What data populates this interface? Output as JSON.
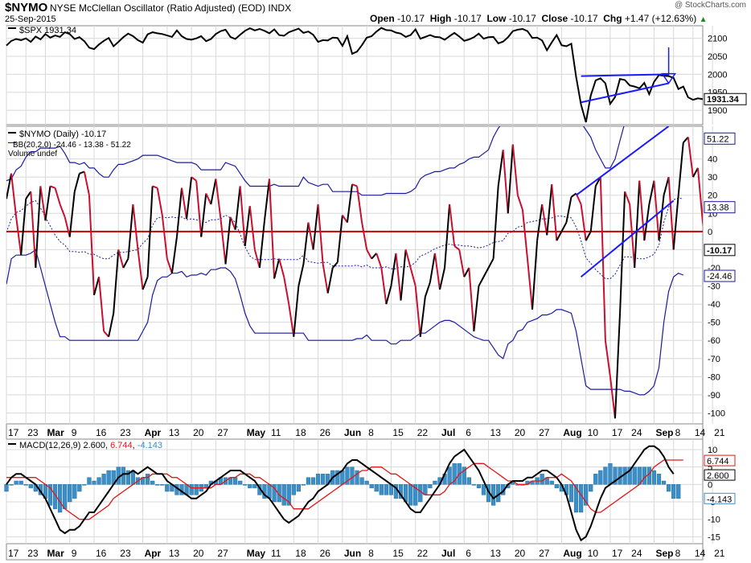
{
  "header": {
    "symbol": "$NYMO",
    "name": "NYSE McClellan Oscillator (Ratio Adjusted) (EOD)",
    "exchange": "INDX",
    "date": "25-Sep-2015",
    "brand": "@ StockCharts.com",
    "open_label": "Open",
    "open": "-10.17",
    "high_label": "High",
    "high": "-10.17",
    "low_label": "Low",
    "low": "-10.17",
    "close_label": "Close",
    "close": "-10.17",
    "chg_label": "Chg",
    "chg": "+1.47 (+12.63%)",
    "up_icon": "triangle-up-icon"
  },
  "colors": {
    "price_line": "#000000",
    "nymo_up": "#000000",
    "nymo_down": "#c8102e",
    "bands": "#1a1aa0",
    "zero_line": "#cc0000",
    "annotation": "#1a1aff",
    "macd_line": "#000000",
    "signal_line": "#e01818",
    "histogram": "#3a8fc8",
    "grid": "#d8d8d8",
    "label_box": "#000000"
  },
  "chart_data": [
    {
      "type": "line",
      "panel": "price",
      "legend": "$SPX 1931.34",
      "series_name": "$SPX",
      "last_label": "1931.34",
      "ylim": [
        1860,
        2135
      ],
      "yticks": [
        "1900",
        "1950",
        "2000",
        "2050",
        "2100"
      ],
      "values": [
        2080,
        2093,
        2098,
        2095,
        2100,
        2090,
        2105,
        2097,
        2112,
        2102,
        2108,
        2104,
        2117,
        2112,
        2098,
        2103,
        2092,
        2074,
        2070,
        2083,
        2093,
        2101,
        2078,
        2090,
        2103,
        2113,
        2106,
        2095,
        2088,
        2111,
        2117,
        2114,
        2112,
        2108,
        2104,
        2122,
        2106,
        2098,
        2096,
        2100,
        2106,
        2092,
        2098,
        2112,
        2120,
        2124,
        2104,
        2098,
        2110,
        2121,
        2128,
        2122,
        2126,
        2121,
        2114,
        2125,
        2109,
        2107,
        2117,
        2122,
        2127,
        2115,
        2119,
        2110,
        2090,
        2095,
        2094,
        2102,
        2101,
        2079,
        2106,
        2057,
        2063,
        2081,
        2102,
        2106,
        2119,
        2129,
        2123,
        2122,
        2116,
        2113,
        2104,
        2109,
        2125,
        2099,
        2104,
        2109,
        2104,
        2103,
        2096,
        2106,
        2115,
        2105,
        2093,
        2097,
        2103,
        2113,
        2099,
        2103,
        2104,
        2086,
        2091,
        2103,
        2120,
        2124,
        2126,
        2120,
        2101,
        2102,
        2094,
        2067,
        2089,
        2109,
        2081,
        2078,
        2085,
        1993,
        1916,
        1867,
        1941,
        1983,
        1989,
        1975,
        1918,
        1937,
        1987,
        1984,
        1969,
        1966,
        1961,
        1976,
        1945,
        1979,
        1998,
        1996,
        1995,
        1990,
        1959,
        1966,
        1936,
        1929,
        1933,
        1931
      ],
      "annotations": [
        {
          "type": "trendline",
          "from": {
            "x": 118,
            "y": 1995
          },
          "to": {
            "x": 136,
            "y": 2000
          }
        },
        {
          "type": "trendline",
          "from": {
            "x": 118,
            "y": 1922
          },
          "to": {
            "x": 136,
            "y": 1975
          }
        },
        {
          "type": "arrow-down",
          "x": 136,
          "y_from": 2075,
          "y_to": 1975
        }
      ]
    },
    {
      "type": "line",
      "panel": "oscillator",
      "legend": "$NYMO (Daily) -10.17",
      "legend_bb": "BB(20,2.0) -24.46 - 13.38 - 51.22",
      "legend_volume": "Volume undef",
      "series_name": "$NYMO",
      "ylim": [
        -106,
        58
      ],
      "yticks": [
        "-100",
        "-90",
        "-80",
        "-70",
        "-60",
        "-50",
        "-40",
        "-30",
        "-20",
        "-10",
        "0",
        "10",
        "20",
        "30",
        "40"
      ],
      "band_labels": {
        "upper": "51.22",
        "middle": "13.38",
        "lower": "-24.46",
        "last": "-10.17"
      },
      "zero_line": 0,
      "values": [
        18,
        32,
        8,
        -13,
        18,
        22,
        -20,
        25,
        6,
        25,
        24,
        15,
        8,
        -3,
        22,
        32,
        33,
        20,
        -35,
        -25,
        -55,
        -58,
        -45,
        -10,
        -20,
        -15,
        15,
        -10,
        -32,
        -25,
        25,
        24,
        9,
        -15,
        -23,
        -3,
        24,
        7,
        30,
        28,
        -3,
        21,
        15,
        29,
        7,
        -18,
        8,
        1,
        25,
        -8,
        14,
        -10,
        -20,
        6,
        29,
        -26,
        -15,
        -25,
        -40,
        -58,
        -30,
        -18,
        5,
        -10,
        15,
        -18,
        -34,
        -20,
        -17,
        9,
        5,
        26,
        25,
        5,
        -10,
        -15,
        -12,
        -20,
        -40,
        -30,
        -12,
        -38,
        -10,
        -20,
        -30,
        -58,
        -36,
        -28,
        -12,
        -32,
        -20,
        15,
        -8,
        -10,
        -25,
        -20,
        -55,
        -30,
        -25,
        -20,
        -15,
        25,
        45,
        10,
        48,
        20,
        12,
        -15,
        -43,
        -5,
        15,
        -2,
        26,
        -5,
        0,
        5,
        19,
        21,
        15,
        -5,
        0,
        25,
        30,
        -60,
        -80,
        -103,
        -45,
        22,
        15,
        -20,
        28,
        -5,
        15,
        28,
        -5,
        20,
        30,
        -10,
        20,
        49,
        52,
        30,
        35,
        5,
        -10,
        -15,
        -12
      ],
      "bands_upper": [
        28,
        29,
        34,
        36,
        41,
        44,
        44,
        46,
        46,
        46,
        46,
        47,
        43,
        38,
        38,
        37,
        38,
        35,
        35,
        32,
        30,
        30,
        34,
        37,
        37,
        38,
        39,
        40,
        42,
        42,
        42,
        42,
        41,
        40,
        39,
        38,
        38,
        38,
        38,
        37,
        34,
        34,
        34,
        34,
        34,
        38,
        37,
        36,
        32,
        28,
        25,
        25,
        25,
        25,
        25,
        26,
        25,
        25,
        25,
        25,
        25,
        30,
        27,
        26,
        25,
        26,
        26,
        22,
        22,
        22,
        22,
        22,
        22,
        20,
        20,
        20,
        20,
        20,
        21,
        21,
        21,
        21,
        21,
        22,
        24,
        29,
        31,
        32,
        33,
        33,
        34,
        35,
        35,
        37,
        38,
        40,
        41,
        41,
        43,
        45,
        52,
        57,
        60,
        60,
        60,
        60,
        60,
        60,
        60,
        60,
        60,
        60,
        60,
        60,
        60,
        60,
        60,
        60,
        60,
        56,
        52,
        45,
        40,
        35,
        35,
        40,
        50,
        60,
        60,
        60,
        60,
        60,
        60,
        60,
        60,
        60,
        60,
        60,
        60,
        60,
        60,
        60,
        60,
        60
      ],
      "bands_lower": [
        -29,
        -15,
        -13,
        -13,
        -13,
        -12,
        -10,
        -20,
        -30,
        -40,
        -50,
        -58,
        -58,
        -60,
        -60,
        -60,
        -60,
        -60,
        -60,
        -60,
        -60,
        -60,
        -60,
        -60,
        -60,
        -60,
        -60,
        -60,
        -55,
        -50,
        -35,
        -27,
        -25,
        -25,
        -23,
        -23,
        -22,
        -25,
        -24,
        -24,
        -23,
        -24,
        -21,
        -21,
        -20,
        -20,
        -22,
        -26,
        -35,
        -45,
        -52,
        -56,
        -56,
        -56,
        -56,
        -56,
        -56,
        -56,
        -56,
        -56,
        -56,
        -56,
        -60,
        -60,
        -60,
        -60,
        -60,
        -60,
        -60,
        -60,
        -60,
        -60,
        -59,
        -59,
        -57,
        -60,
        -60,
        -60,
        -60,
        -62,
        -62,
        -60,
        -60,
        -60,
        -58,
        -56,
        -56,
        -54,
        -52,
        -50,
        -49,
        -49,
        -50,
        -52,
        -54,
        -56,
        -58,
        -59,
        -60,
        -60,
        -64,
        -68,
        -70,
        -62,
        -60,
        -55,
        -54,
        -50,
        -49,
        -48,
        -46,
        -46,
        -45,
        -43,
        -43,
        -44,
        -45,
        -55,
        -70,
        -85,
        -87,
        -87,
        -87,
        -87,
        -87,
        -87,
        -87,
        -88,
        -88,
        -89,
        -90,
        -90,
        -88,
        -85,
        -75,
        -50,
        -33,
        -25,
        -23,
        -24
      ],
      "annotations": [
        {
          "type": "trendline",
          "from": {
            "x": 117,
            "y": 20
          },
          "to": {
            "x": 136,
            "y": 58
          }
        },
        {
          "type": "trendline",
          "from": {
            "x": 118,
            "y": -25
          },
          "to": {
            "x": 137,
            "y": 17
          }
        }
      ]
    },
    {
      "type": "line",
      "panel": "macd",
      "legend_label": "MACD(12,26,9)",
      "macd_value": "2.600",
      "signal_value": "6.744",
      "hist_value": "-4.143",
      "ylim": [
        -17,
        13
      ],
      "yticks": [
        "-15",
        "-10",
        "-5",
        "0",
        "5",
        "10"
      ],
      "macd": [
        0,
        2,
        3,
        3,
        2,
        1,
        0,
        -2,
        -4,
        -7,
        -10,
        -13,
        -14,
        -13,
        -13,
        -12,
        -10,
        -8,
        -8,
        -6,
        -4,
        -2,
        0,
        2,
        3,
        3,
        4,
        3,
        4,
        5,
        4,
        3,
        3,
        1,
        0,
        -1,
        -2,
        -3,
        -4,
        -4,
        -3,
        -2,
        0,
        1,
        2,
        3,
        4,
        4,
        4,
        3,
        2,
        1,
        -1,
        -3,
        -4,
        -6,
        -8,
        -10,
        -11,
        -10,
        -9,
        -7,
        -5,
        -4,
        -2,
        -1,
        0,
        2,
        3,
        4,
        6,
        7,
        7,
        6,
        5,
        4,
        3,
        2,
        1,
        0,
        -1,
        -3,
        -5,
        -7,
        -8,
        -8,
        -6,
        -4,
        -2,
        0,
        3,
        6,
        8,
        9,
        10,
        8,
        6,
        4,
        1,
        -2,
        -4,
        -3,
        -2,
        0,
        1,
        1,
        1,
        2,
        2,
        3,
        4,
        4,
        3,
        2,
        0,
        -3,
        -8,
        -13,
        -16,
        -15,
        -12,
        -8,
        -4,
        -1,
        0,
        1,
        2,
        3,
        4,
        6,
        8,
        10,
        11,
        11,
        10,
        8,
        5,
        3
      ],
      "signal": [
        2,
        2,
        2,
        2,
        2,
        2,
        2,
        1,
        0,
        -1,
        -3,
        -5,
        -7,
        -8,
        -9,
        -10,
        -10,
        -10,
        -9,
        -8,
        -7,
        -6,
        -4,
        -3,
        -2,
        -1,
        0,
        1,
        2,
        2,
        3,
        3,
        3,
        3,
        2,
        2,
        1,
        0,
        -1,
        -1,
        -1,
        -1,
        -1,
        0,
        0,
        1,
        2,
        2,
        3,
        3,
        3,
        2,
        2,
        1,
        0,
        -1,
        -3,
        -4,
        -5,
        -7,
        -7,
        -7,
        -7,
        -6,
        -5,
        -4,
        -3,
        -2,
        -1,
        0,
        1,
        2,
        3,
        4,
        4,
        5,
        5,
        5,
        4,
        3,
        3,
        2,
        1,
        0,
        -1,
        -2,
        -3,
        -3,
        -3,
        -3,
        -2,
        0,
        1,
        3,
        4,
        5,
        6,
        6,
        6,
        5,
        4,
        3,
        2,
        1,
        1,
        0,
        0,
        0,
        1,
        1,
        1,
        2,
        2,
        2,
        3,
        2,
        1,
        -1,
        -3,
        -5,
        -7,
        -8,
        -8,
        -7,
        -6,
        -5,
        -4,
        -3,
        -2,
        -1,
        0,
        2,
        3,
        5,
        6,
        7,
        7,
        7,
        7,
        7
      ],
      "histogram": [
        -2,
        0,
        1,
        1,
        0,
        -1,
        -2,
        -3,
        -4,
        -6,
        -7,
        -8,
        -7,
        -5,
        -4,
        -2,
        0,
        2,
        1,
        2,
        3,
        4,
        4,
        5,
        5,
        4,
        4,
        2,
        2,
        3,
        1,
        0,
        0,
        -2,
        -2,
        -3,
        -3,
        -3,
        -3,
        -3,
        -2,
        -1,
        1,
        1,
        2,
        2,
        2,
        2,
        1,
        0,
        -1,
        -1,
        -3,
        -4,
        -4,
        -5,
        -5,
        -6,
        -6,
        -3,
        -2,
        0,
        2,
        2,
        3,
        3,
        3,
        4,
        4,
        4,
        5,
        5,
        4,
        2,
        1,
        -1,
        -2,
        -3,
        -3,
        -3,
        -4,
        -4,
        -5,
        -6,
        -6,
        -5,
        -3,
        -1,
        1,
        2,
        3,
        5,
        6,
        6,
        5,
        2,
        0,
        -1,
        -3,
        -5,
        -6,
        -5,
        -3,
        -1,
        1,
        0,
        0,
        1,
        1,
        2,
        3,
        2,
        1,
        -1,
        -2,
        -3,
        -5,
        -8,
        -8,
        -6,
        -2,
        3,
        4,
        5,
        6,
        5,
        5,
        5,
        5,
        5,
        5,
        5,
        5,
        4,
        3,
        1,
        -2,
        -4,
        -4
      ]
    }
  ],
  "x_axis": {
    "labels": [
      {
        "text": "17",
        "bold": false
      },
      {
        "text": "23",
        "bold": false
      },
      {
        "text": "Mar",
        "bold": true
      },
      {
        "text": "9",
        "bold": false
      },
      {
        "text": "16",
        "bold": false
      },
      {
        "text": "23",
        "bold": false
      },
      {
        "text": "Apr",
        "bold": true
      },
      {
        "text": "13",
        "bold": false
      },
      {
        "text": "20",
        "bold": false
      },
      {
        "text": "27",
        "bold": false
      },
      {
        "text": "May",
        "bold": true
      },
      {
        "text": "11",
        "bold": false
      },
      {
        "text": "18",
        "bold": false
      },
      {
        "text": "26",
        "bold": false
      },
      {
        "text": "Jun",
        "bold": true
      },
      {
        "text": "8",
        "bold": false
      },
      {
        "text": "15",
        "bold": false
      },
      {
        "text": "22",
        "bold": false
      },
      {
        "text": "Jul",
        "bold": true
      },
      {
        "text": "6",
        "bold": false
      },
      {
        "text": "13",
        "bold": false
      },
      {
        "text": "20",
        "bold": false
      },
      {
        "text": "27",
        "bold": false
      },
      {
        "text": "Aug",
        "bold": true
      },
      {
        "text": "10",
        "bold": false
      },
      {
        "text": "17",
        "bold": false
      },
      {
        "text": "24",
        "bold": false
      },
      {
        "text": "Sep",
        "bold": true
      },
      {
        "text": "8",
        "bold": false
      },
      {
        "text": "14",
        "bold": false
      },
      {
        "text": "21",
        "bold": false
      }
    ],
    "label_index": [
      0,
      4,
      8,
      13,
      18,
      23,
      28,
      33,
      38,
      43,
      49,
      54,
      59,
      64,
      69,
      74,
      79,
      84,
      89,
      94,
      99,
      104,
      109,
      114,
      119,
      124,
      128,
      133,
      137,
      141,
      145
    ]
  }
}
